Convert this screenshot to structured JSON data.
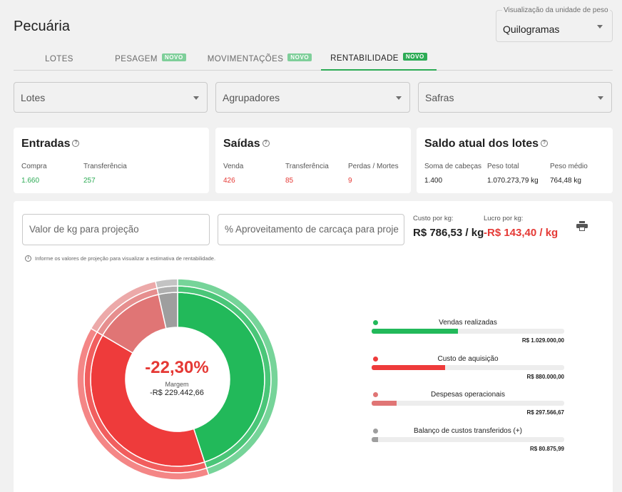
{
  "page": {
    "title": "Pecuária"
  },
  "unit_select": {
    "label": "Visualização da unidade de peso",
    "value": "Quilogramas"
  },
  "tabs": [
    {
      "label": "LOTES",
      "badge": ""
    },
    {
      "label": "PESAGEM",
      "badge": "NOVO"
    },
    {
      "label": "MOVIMENTAÇÕES",
      "badge": "NOVO"
    },
    {
      "label": "RENTABILIDADE",
      "badge": "NOVO",
      "active": true
    }
  ],
  "filters": {
    "lotes": "Lotes",
    "agrupadores": "Agrupadores",
    "safras": "Safras"
  },
  "cards": {
    "entradas": {
      "title": "Entradas",
      "stats": [
        {
          "label": "Compra",
          "value": "1.660"
        },
        {
          "label": "Transferência",
          "value": "257"
        }
      ]
    },
    "saidas": {
      "title": "Saídas",
      "stats": [
        {
          "label": "Venda",
          "value": "426"
        },
        {
          "label": "Transferência",
          "value": "85"
        },
        {
          "label": "Perdas / Mortes",
          "value": "9"
        }
      ]
    },
    "saldo": {
      "title": "Saldo atual dos lotes",
      "stats": [
        {
          "label": "Soma de cabeças",
          "value": "1.400"
        },
        {
          "label": "Peso total",
          "value": "1.070.273,79 kg"
        },
        {
          "label": "Peso médio",
          "value": "764,48 kg"
        }
      ]
    }
  },
  "projection": {
    "kg_value_placeholder": "Valor de kg para projeção",
    "carcass_placeholder": "% Aproveitamento de carcaça para proje...",
    "custo_label": "Custo por kg:",
    "custo_value": "R$ 786,53 / kg",
    "lucro_label": "Lucro por kg:",
    "lucro_value": "-R$ 143,40 / kg",
    "info": "Informe os valores de projeção para visualizar a estimativa de rentabilidade."
  },
  "donut": {
    "percent": "-22,30%",
    "label": "Margem",
    "value": "-R$ 229.442,66"
  },
  "chart_data": {
    "type": "pie",
    "title": "",
    "center_value": "-22,30%",
    "center_label": "Margem",
    "center_sub": "-R$ 229.442,66",
    "series": [
      {
        "name": "Vendas realizadas",
        "value": 1029000.0,
        "amount": "R$ 1.029.000,00",
        "color": "#22b95a"
      },
      {
        "name": "Custo de aquisição",
        "value": 880000.0,
        "amount": "R$ 880.000,00",
        "color": "#ee3b3b"
      },
      {
        "name": "Despesas operacionais",
        "value": 297566.67,
        "amount": "R$ 297.566,67",
        "color": "#e07575"
      },
      {
        "name": "Balanço de custos transferidos (+)",
        "value": 80875.99,
        "amount": "R$ 80.875,99",
        "color": "#9e9e9e"
      }
    ],
    "bar_max": 2299000
  }
}
